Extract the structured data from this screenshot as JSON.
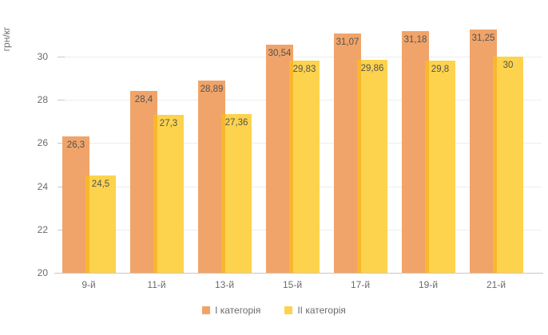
{
  "chart_data": {
    "type": "bar",
    "title": "",
    "xlabel": "",
    "ylabel": "грн/кг",
    "categories": [
      "9-й",
      "11-й",
      "13-й",
      "15-й",
      "17-й",
      "19-й",
      "21-й"
    ],
    "series": [
      {
        "name": "I категорія",
        "color": "#F0A469",
        "values": [
          26.3,
          28.4,
          28.89,
          30.54,
          31.07,
          31.18,
          31.25
        ],
        "labels": [
          "26,3",
          "28,4",
          "28,89",
          "30,54",
          "31,07",
          "31,18",
          "31,25"
        ]
      },
      {
        "name": "II категорія",
        "color": "#FDD34D",
        "overlap_color": "#F9B72E",
        "values": [
          24.5,
          27.3,
          27.36,
          29.83,
          29.86,
          29.8,
          30
        ],
        "labels": [
          "24,5",
          "27,3",
          "27,36",
          "29,83",
          "29,86",
          "29,8",
          "30"
        ]
      }
    ],
    "ylim": [
      20,
      32.4
    ],
    "yticks": [
      20,
      22,
      24,
      26,
      28,
      30
    ],
    "grid": true,
    "legend_position": "bottom",
    "colors": {
      "gridline": "#ededed",
      "axis_line": "#c8c8c8",
      "tick_text": "#6b6b6b",
      "value_label_text": "#525252"
    }
  }
}
